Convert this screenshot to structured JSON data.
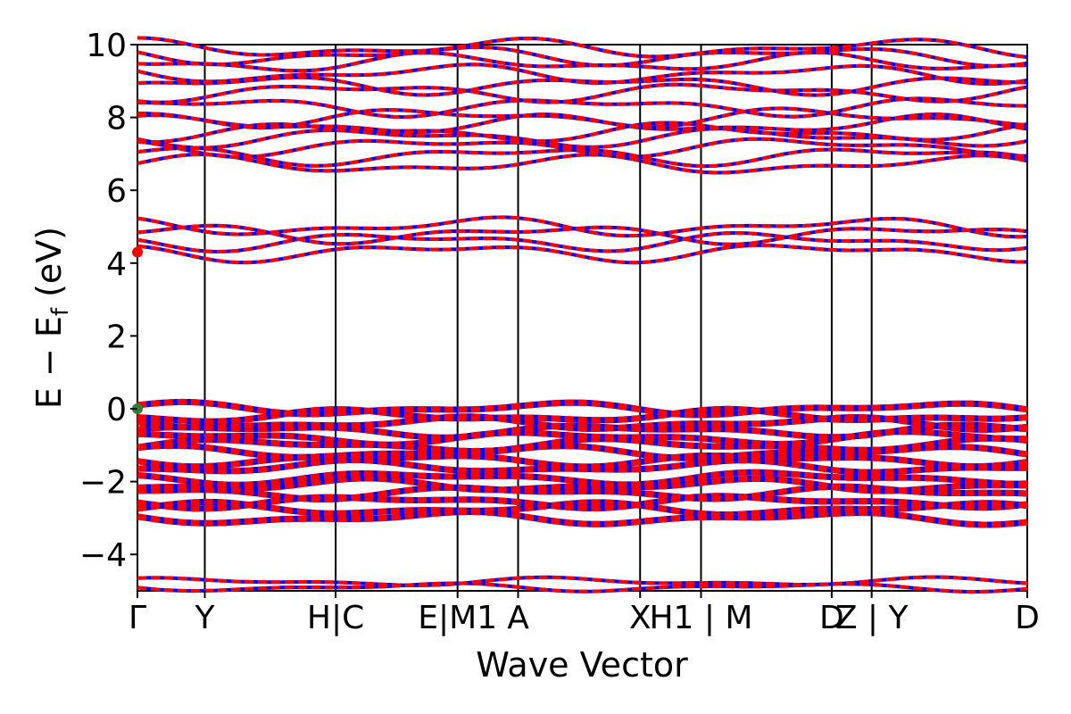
{
  "chart_data": {
    "type": "line",
    "title": "",
    "xlabel": "Wave Vector",
    "ylabel_parts": {
      "main": "E − E",
      "sub": "f",
      "unit": " (eV)"
    },
    "ylim": [
      -5,
      10
    ],
    "yticks": [
      -4,
      -2,
      0,
      2,
      4,
      6,
      8,
      10
    ],
    "ytick_labels": [
      "−4",
      "−2",
      "0",
      "2",
      "4",
      "6",
      "8",
      "10"
    ],
    "x_range": [
      0,
      1
    ],
    "kpoints": [
      {
        "x": 0.0,
        "label": "Γ"
      },
      {
        "x": 0.1255,
        "label": "Y"
      },
      {
        "x": 0.3693,
        "label": "H"
      },
      {
        "x": 0.3693,
        "label": "|"
      },
      {
        "x": 0.3693,
        "label": "C"
      },
      {
        "x": 0.5964,
        "label": "E"
      },
      {
        "x": 0.5964,
        "label": "M1"
      },
      {
        "x": 0.7092,
        "label": "A"
      },
      {
        "x": 0.9365,
        "label": "X"
      },
      {
        "x": 1.05,
        "label": "H1 | M"
      },
      {
        "x": 1.2935,
        "label": "D"
      },
      {
        "x": 1.3679,
        "label": "Z | Y"
      },
      {
        "x": 1.6578,
        "label": "D"
      }
    ],
    "tick_lines": [
      0.0,
      0.1255,
      0.3693,
      0.5964,
      0.7092,
      0.9365,
      1.05,
      1.2935,
      1.3679,
      1.6578
    ],
    "x_max": 1.6578,
    "xtick_display": [
      {
        "x": 0.0,
        "text": "Γ"
      },
      {
        "x": 0.1255,
        "text": "Y"
      },
      {
        "x": 0.3693,
        "text": "H|C"
      },
      {
        "x": 0.5964,
        "text": "E|M1"
      },
      {
        "x": 0.7092,
        "text": "A"
      },
      {
        "x": 0.9365,
        "text": "X"
      },
      {
        "x": 1.05,
        "text": "H1 | M"
      },
      {
        "x": 1.2935,
        "text": "D"
      },
      {
        "x": 1.3679,
        "text": "Z | Y"
      },
      {
        "x": 1.6578,
        "text": "D"
      }
    ],
    "band_colors": {
      "spin_up": "#ff0000",
      "spin_down": "#0000ff"
    },
    "vbm_marker": {
      "x": 0.0,
      "y": 0.0,
      "color": "#2e7d32"
    },
    "cbm_marker": {
      "x": 0.0,
      "y": 4.3,
      "color": "#ff0000"
    },
    "band_groups": [
      {
        "name": "deep",
        "levels": [
          -4.9,
          -4.75
        ]
      },
      {
        "name": "valence",
        "levels": [
          -3.0,
          -2.75,
          -2.55,
          -2.3,
          -2.1,
          -1.9,
          -1.6,
          -1.4,
          -1.2,
          -1.0,
          -0.8,
          -0.6,
          -0.4,
          -0.2,
          0.0
        ]
      },
      {
        "name": "conduction_low",
        "levels": [
          4.3,
          4.6,
          4.8,
          5.0
        ]
      },
      {
        "name": "conduction_high",
        "levels": [
          6.7,
          6.95,
          7.2,
          7.45,
          7.6,
          7.8,
          8.0,
          8.3,
          8.7,
          8.9,
          9.2,
          9.5,
          9.7,
          9.9
        ]
      }
    ]
  }
}
